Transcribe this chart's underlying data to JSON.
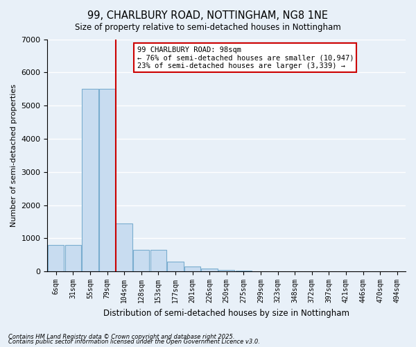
{
  "title": "99, CHARLBURY ROAD, NOTTINGHAM, NG8 1NE",
  "subtitle": "Size of property relative to semi-detached houses in Nottingham",
  "xlabel": "Distribution of semi-detached houses by size in Nottingham",
  "ylabel": "Number of semi-detached properties",
  "categories": [
    "6sqm",
    "31sqm",
    "55sqm",
    "79sqm",
    "104sqm",
    "128sqm",
    "153sqm",
    "177sqm",
    "201sqm",
    "226sqm",
    "250sqm",
    "275sqm",
    "299sqm",
    "323sqm",
    "348sqm",
    "372sqm",
    "397sqm",
    "421sqm",
    "446sqm",
    "470sqm",
    "494sqm"
  ],
  "values": [
    800,
    800,
    5500,
    5500,
    1450,
    650,
    650,
    300,
    150,
    80,
    50,
    20,
    10,
    5,
    3,
    2,
    1,
    0,
    0,
    0,
    0
  ],
  "bar_color": "#c8dcf0",
  "bar_edge_color": "#7aadcf",
  "vline_x_index": 4,
  "vline_color": "#cc0000",
  "annotation_text": "99 CHARLBURY ROAD: 98sqm\n← 76% of semi-detached houses are smaller (10,947)\n23% of semi-detached houses are larger (3,339) →",
  "annotation_box_color": "white",
  "annotation_box_edge_color": "#cc0000",
  "bg_color": "#e8f0f8",
  "plot_bg_color": "#e8f0f8",
  "ylim": [
    0,
    7000
  ],
  "yticks": [
    0,
    1000,
    2000,
    3000,
    4000,
    5000,
    6000,
    7000
  ],
  "footnote1": "Contains HM Land Registry data © Crown copyright and database right 2025.",
  "footnote2": "Contains public sector information licensed under the Open Government Licence v3.0."
}
